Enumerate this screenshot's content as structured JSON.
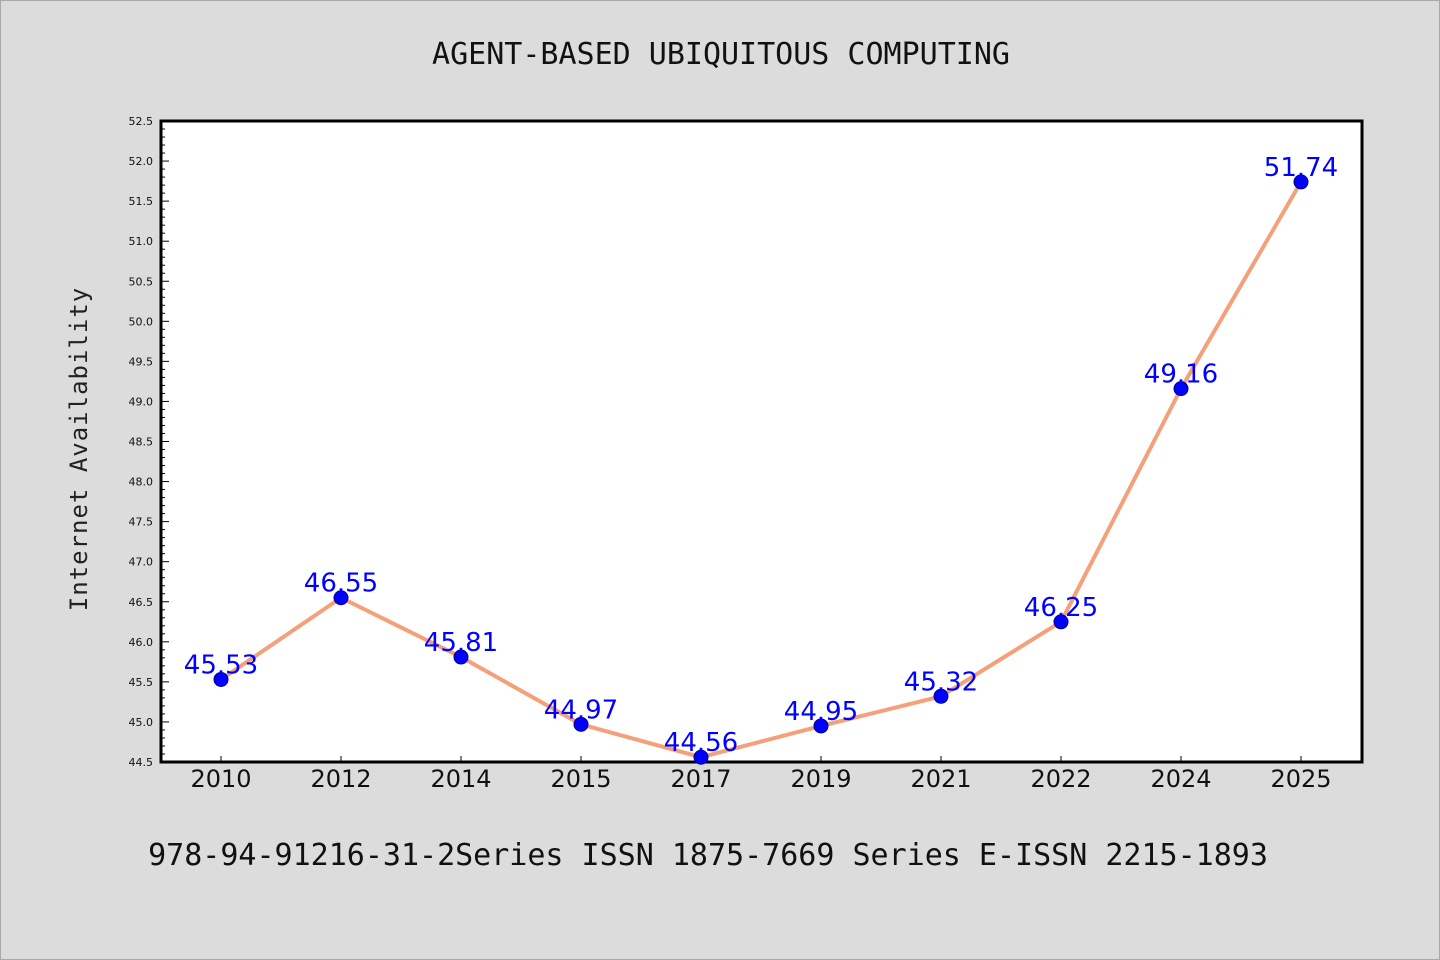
{
  "chart_data": {
    "type": "line",
    "title": "AGENT-BASED UBIQUITOUS COMPUTING",
    "ylabel": "Internet Availability",
    "xlabel": "",
    "categories": [
      "2010",
      "2012",
      "2014",
      "2015",
      "2017",
      "2019",
      "2021",
      "2022",
      "2024",
      "2025"
    ],
    "series": [
      {
        "values": [
          45.53,
          46.55,
          45.81,
          44.97,
          44.56,
          44.95,
          45.32,
          46.25,
          49.16,
          51.74
        ]
      }
    ],
    "data_labels": [
      "45.53",
      "46.55",
      "45.81",
      "44.97",
      "44.56",
      "44.95",
      "45.32",
      "46.25",
      "49.16",
      "51.74"
    ],
    "ylim": [
      44.5,
      52.5
    ],
    "yticks": [
      "44.5",
      "45.0",
      "45.5",
      "46.0",
      "46.5",
      "47.0",
      "47.5",
      "48.0",
      "48.5",
      "49.0",
      "49.5",
      "50.0",
      "50.5",
      "51.0",
      "51.5",
      "52.0",
      "52.5"
    ],
    "grid": false,
    "colors": {
      "line": "#f4a07a",
      "marker": "#0000ff",
      "label": "#0000ff",
      "background": "#dcdcdc",
      "plot_area": "#ffffff"
    }
  },
  "footer": "978-94-91216-31-2Series ISSN 1875-7669 Series E-ISSN 2215-1893"
}
